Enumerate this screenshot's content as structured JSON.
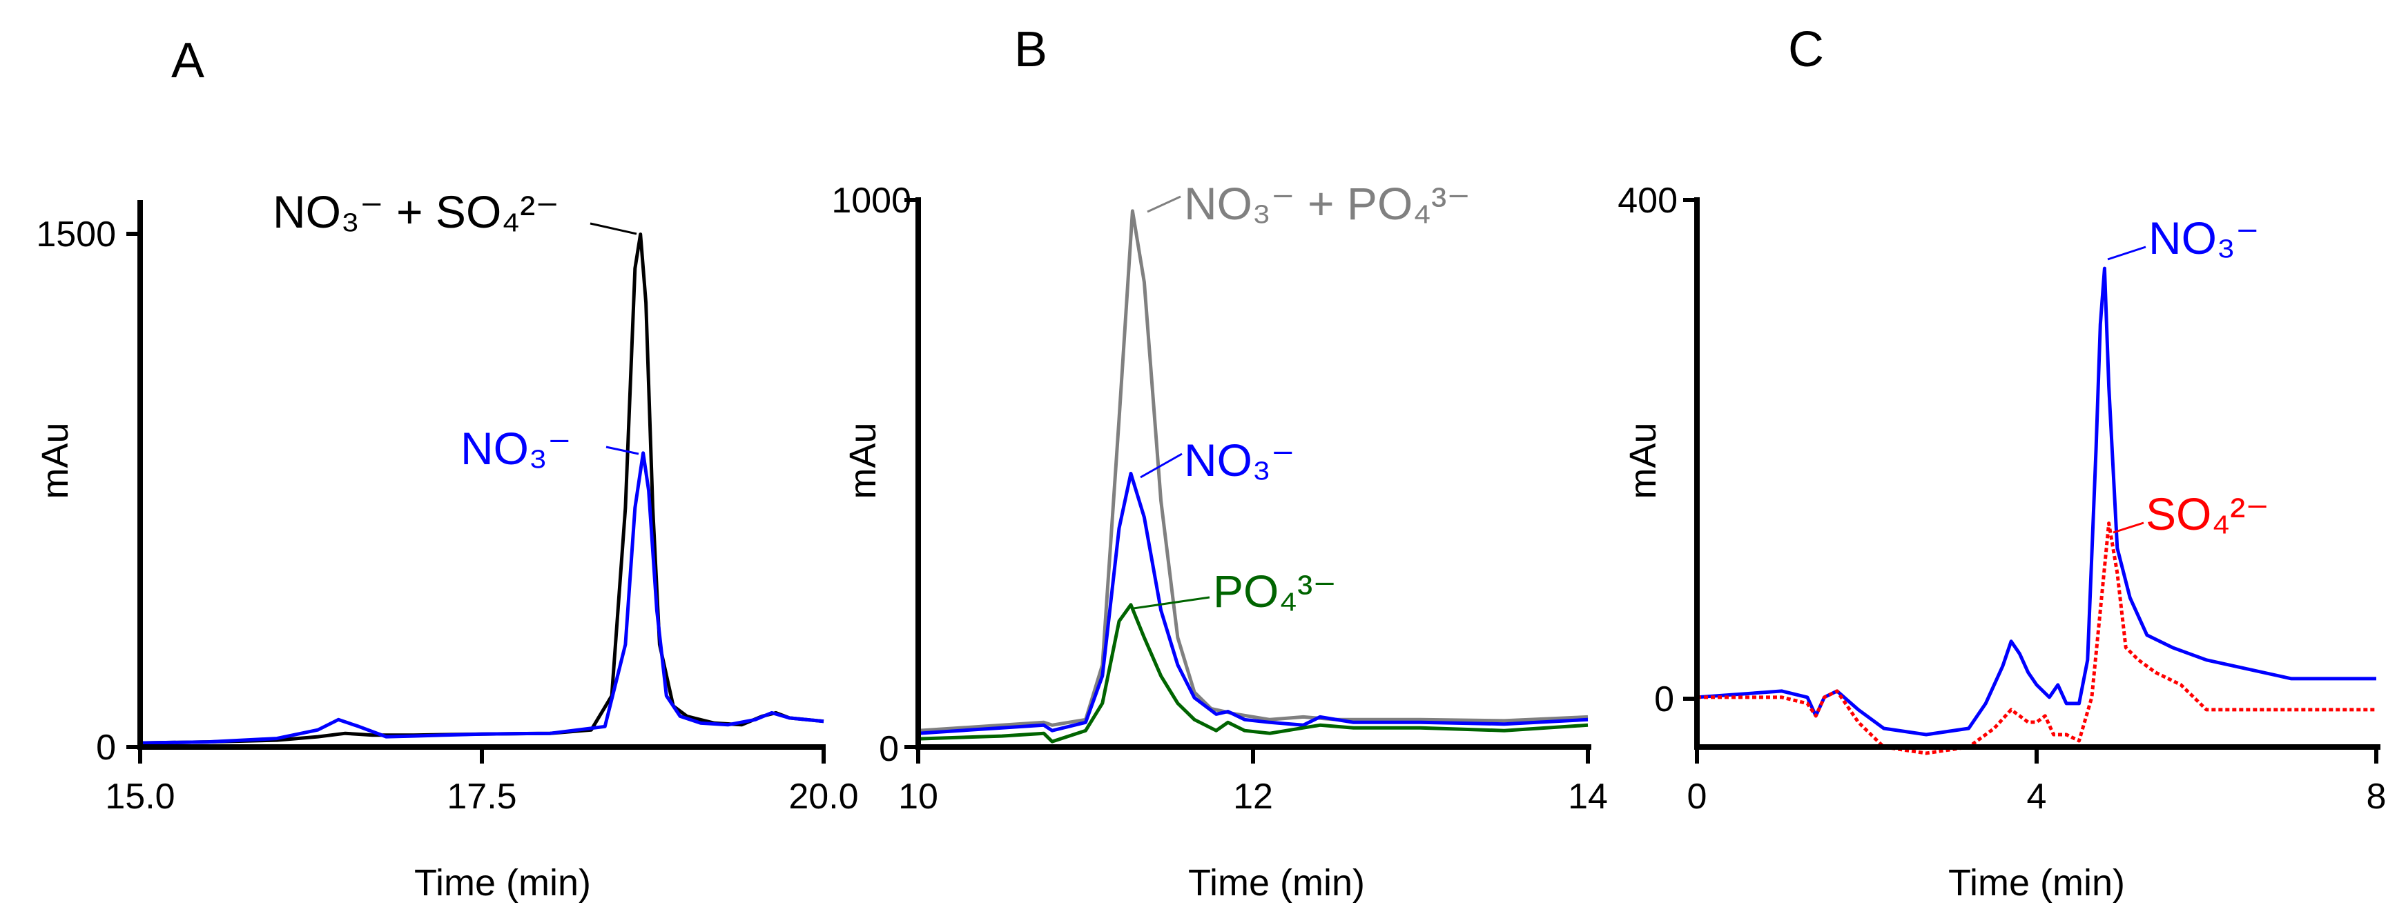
{
  "chart_data": [
    {
      "panel_label": "A",
      "type": "line",
      "xlabel": "Time (min)",
      "ylabel": "mAu",
      "xlim": [
        15.0,
        20.0
      ],
      "ylim": [
        0,
        1600
      ],
      "xticks": [
        15.0,
        17.5,
        20.0
      ],
      "xtick_labels": [
        "15.0",
        "17.5",
        "20.0"
      ],
      "yticks": [
        0,
        1500
      ],
      "ytick_labels": [
        "0",
        "1500"
      ],
      "series": [
        {
          "name": "NO3- + SO4 2-",
          "color": "#000000",
          "dash": false,
          "x": [
            15.0,
            15.5,
            16.0,
            16.3,
            16.5,
            16.7,
            17.0,
            17.5,
            18.0,
            18.3,
            18.45,
            18.55,
            18.62,
            18.66,
            18.7,
            18.75,
            18.8,
            18.9,
            19.0,
            19.2,
            19.4,
            19.55,
            19.65,
            19.75,
            20.0
          ],
          "y": [
            12,
            15,
            20,
            30,
            40,
            35,
            35,
            38,
            40,
            50,
            150,
            700,
            1400,
            1500,
            1300,
            700,
            300,
            120,
            90,
            70,
            65,
            90,
            100,
            85,
            75
          ]
        },
        {
          "name": "NO3-",
          "color": "#0000ff",
          "dash": false,
          "x": [
            15.0,
            15.5,
            16.0,
            16.3,
            16.45,
            16.6,
            16.8,
            17.0,
            17.5,
            18.0,
            18.4,
            18.55,
            18.62,
            18.68,
            18.72,
            18.78,
            18.85,
            18.95,
            19.1,
            19.3,
            19.5,
            19.62,
            19.75,
            20.0
          ],
          "y": [
            12,
            15,
            25,
            50,
            80,
            60,
            30,
            32,
            38,
            40,
            60,
            300,
            700,
            860,
            750,
            400,
            150,
            90,
            70,
            65,
            80,
            100,
            85,
            75
          ]
        }
      ],
      "annotations": [
        {
          "text": "NO₃⁻  +  SO₄²⁻",
          "color": "#000000",
          "x": 18.66,
          "y": 1500
        },
        {
          "text": "NO₃⁻",
          "color": "#0000ff",
          "x": 18.68,
          "y": 860
        }
      ]
    },
    {
      "panel_label": "B",
      "type": "line",
      "xlabel": "Time (min)",
      "ylabel": "mAu",
      "xlim": [
        10,
        14
      ],
      "ylim": [
        0,
        1000
      ],
      "xticks": [
        10,
        12,
        14
      ],
      "xtick_labels": [
        "10",
        "12",
        "14"
      ],
      "yticks": [
        0,
        1000
      ],
      "ytick_labels": [
        "0",
        "1000"
      ],
      "series": [
        {
          "name": "NO3- + PO4 3-",
          "color": "#808080",
          "dash": false,
          "x": [
            10.0,
            10.5,
            10.75,
            10.8,
            11.0,
            11.1,
            11.2,
            11.28,
            11.35,
            11.45,
            11.55,
            11.65,
            11.75,
            11.9,
            12.1,
            12.3,
            12.5,
            13.0,
            13.5,
            14.0
          ],
          "y": [
            30,
            40,
            45,
            40,
            50,
            150,
            600,
            980,
            850,
            450,
            200,
            100,
            70,
            60,
            50,
            55,
            50,
            50,
            48,
            55
          ]
        },
        {
          "name": "NO3-",
          "color": "#0000ff",
          "dash": false,
          "x": [
            10.0,
            10.5,
            10.75,
            10.8,
            11.0,
            11.1,
            11.2,
            11.27,
            11.35,
            11.45,
            11.55,
            11.65,
            11.78,
            11.85,
            11.95,
            12.1,
            12.3,
            12.4,
            12.6,
            13.0,
            13.5,
            14.0
          ],
          "y": [
            25,
            35,
            40,
            30,
            45,
            130,
            400,
            500,
            420,
            250,
            150,
            90,
            60,
            65,
            50,
            45,
            40,
            55,
            45,
            45,
            42,
            50
          ]
        },
        {
          "name": "PO4 3-",
          "color": "#006400",
          "dash": false,
          "x": [
            10.0,
            10.5,
            10.75,
            10.8,
            11.0,
            11.1,
            11.2,
            11.27,
            11.35,
            11.45,
            11.55,
            11.65,
            11.78,
            11.85,
            11.95,
            12.1,
            12.3,
            12.4,
            12.6,
            13.0,
            13.5,
            14.0
          ],
          "y": [
            15,
            20,
            25,
            10,
            30,
            80,
            230,
            260,
            200,
            130,
            80,
            50,
            30,
            45,
            30,
            25,
            35,
            40,
            35,
            35,
            30,
            40
          ]
        }
      ],
      "annotations": [
        {
          "text": "NO₃⁻ + PO₄³⁻",
          "color": "#808080",
          "x": 11.28,
          "y": 980
        },
        {
          "text": "NO₃⁻",
          "color": "#0000ff",
          "x": 11.27,
          "y": 500
        },
        {
          "text": "PO₄³⁻",
          "color": "#006400",
          "x": 11.27,
          "y": 260
        }
      ]
    },
    {
      "panel_label": "C",
      "type": "line",
      "xlabel": "Time (min)",
      "ylabel": "mAu",
      "xlim": [
        0,
        8
      ],
      "ylim": [
        -40,
        400
      ],
      "xticks": [
        0,
        4,
        8
      ],
      "xtick_labels": [
        "0",
        "4",
        "8"
      ],
      "yticks": [
        0,
        400
      ],
      "ytick_labels": [
        "0",
        "400"
      ],
      "series": [
        {
          "name": "NO3-",
          "color": "#0000ff",
          "dash": false,
          "x": [
            0.0,
            1.0,
            1.3,
            1.4,
            1.5,
            1.65,
            1.9,
            2.2,
            2.7,
            3.2,
            3.4,
            3.6,
            3.7,
            3.8,
            3.9,
            4.0,
            4.15,
            4.25,
            4.35,
            4.5,
            4.6,
            4.7,
            4.75,
            4.8,
            4.85,
            4.95,
            5.1,
            5.3,
            5.6,
            6.0,
            7.0,
            8.0
          ],
          "y": [
            0,
            5,
            0,
            -15,
            0,
            5,
            -10,
            -25,
            -30,
            -25,
            -5,
            25,
            45,
            35,
            20,
            10,
            0,
            10,
            -5,
            -5,
            30,
            200,
            300,
            345,
            250,
            120,
            80,
            50,
            40,
            30,
            15,
            15
          ]
        },
        {
          "name": "SO4 2-",
          "color": "#ff0000",
          "dash": true,
          "x": [
            0.0,
            1.0,
            1.3,
            1.4,
            1.5,
            1.65,
            1.9,
            2.2,
            2.7,
            3.2,
            3.5,
            3.7,
            3.8,
            3.9,
            4.0,
            4.1,
            4.2,
            4.35,
            4.5,
            4.65,
            4.75,
            4.85,
            4.95,
            5.05,
            5.2,
            5.4,
            5.7,
            6.0,
            7.0,
            8.0
          ],
          "y": [
            0,
            0,
            -5,
            -15,
            0,
            5,
            -20,
            -40,
            -45,
            -40,
            -25,
            -10,
            -15,
            -20,
            -20,
            -15,
            -30,
            -30,
            -35,
            0,
            70,
            140,
            100,
            40,
            30,
            20,
            10,
            -10,
            -10,
            -10
          ]
        }
      ],
      "annotations": [
        {
          "text": "NO₃⁻",
          "color": "#0000ff",
          "x": 4.8,
          "y": 345
        },
        {
          "text": "SO₄²⁻",
          "color": "#ff0000",
          "x": 4.85,
          "y": 140
        }
      ]
    }
  ]
}
